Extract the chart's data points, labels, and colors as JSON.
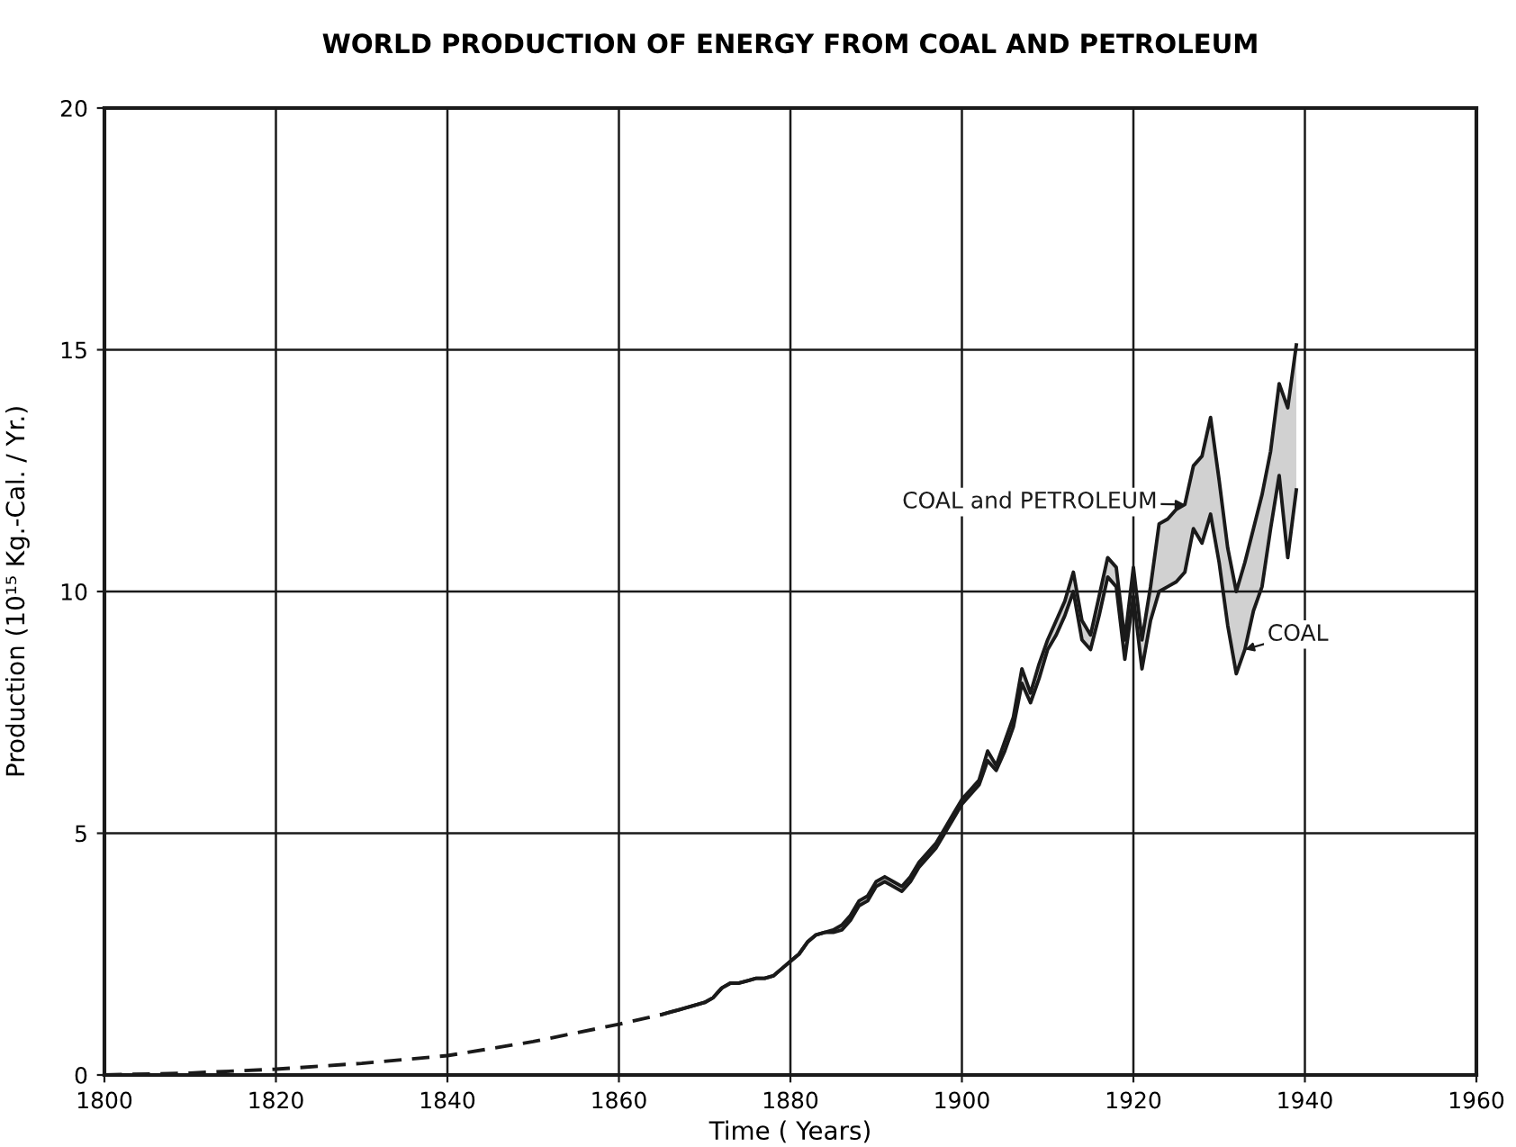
{
  "chart_data": {
    "type": "line",
    "title": "WORLD PRODUCTION OF ENERGY FROM COAL AND PETROLEUM",
    "xlabel": "Time ( Years)",
    "ylabel": "Production (10¹⁵ Kg.-Cal. / Yr.)",
    "xlim": [
      1800,
      1960
    ],
    "xticks": [
      1800,
      1820,
      1840,
      1860,
      1880,
      1900,
      1920,
      1940,
      1960
    ],
    "ylim": [
      0,
      20
    ],
    "yticks": [
      0,
      5,
      10,
      15,
      20
    ],
    "grid": true,
    "series": [
      {
        "x": [
          1800,
          1810,
          1820,
          1830,
          1840,
          1850,
          1860,
          1865
        ],
        "values": [
          0.0,
          0.04,
          0.12,
          0.24,
          0.4,
          0.69,
          1.05,
          1.25
        ],
        "color": "#1a1a1a",
        "line_style": "dashed"
      },
      {
        "name": "COAL",
        "color": "#1a1a1a",
        "x": [
          1865,
          1866,
          1867,
          1868,
          1869,
          1870,
          1871,
          1872,
          1873,
          1874,
          1875,
          1876,
          1877,
          1878,
          1879,
          1880,
          1881,
          1882,
          1883,
          1884,
          1885,
          1886,
          1887,
          1888,
          1889,
          1890,
          1891,
          1892,
          1893,
          1894,
          1895,
          1896,
          1897,
          1898,
          1899,
          1900,
          1901,
          1902,
          1903,
          1904,
          1905,
          1906,
          1907,
          1908,
          1909,
          1910,
          1911,
          1912,
          1913,
          1914,
          1915,
          1916,
          1917,
          1918,
          1919,
          1920,
          1921,
          1922,
          1923,
          1924,
          1925,
          1926,
          1927,
          1928,
          1929,
          1930,
          1931,
          1932,
          1933,
          1934,
          1935,
          1936,
          1937,
          1938,
          1939
        ],
        "values": [
          1.25,
          1.3,
          1.35,
          1.4,
          1.45,
          1.5,
          1.6,
          1.8,
          1.9,
          1.9,
          1.95,
          2.0,
          2.0,
          2.05,
          2.2,
          2.35,
          2.5,
          2.75,
          2.9,
          2.95,
          2.95,
          3.0,
          3.2,
          3.5,
          3.6,
          3.9,
          4.0,
          3.9,
          3.8,
          4.0,
          4.3,
          4.5,
          4.7,
          5.0,
          5.3,
          5.6,
          5.8,
          6.0,
          6.5,
          6.3,
          6.7,
          7.2,
          8.1,
          7.7,
          8.2,
          8.8,
          9.1,
          9.5,
          10.0,
          9.0,
          8.8,
          9.5,
          10.3,
          10.1,
          8.6,
          9.9,
          8.4,
          9.4,
          10.0,
          10.1,
          10.2,
          10.4,
          11.3,
          11.0,
          11.6,
          10.6,
          9.3,
          8.3,
          8.8,
          9.6,
          10.1,
          11.3,
          12.4,
          10.7,
          12.1
        ]
      },
      {
        "name": "COAL and PETROLEUM",
        "color": "#1a1a1a",
        "x": [
          1865,
          1866,
          1867,
          1868,
          1869,
          1870,
          1871,
          1872,
          1873,
          1874,
          1875,
          1876,
          1877,
          1878,
          1879,
          1880,
          1881,
          1882,
          1883,
          1884,
          1885,
          1886,
          1887,
          1888,
          1889,
          1890,
          1891,
          1892,
          1893,
          1894,
          1895,
          1896,
          1897,
          1898,
          1899,
          1900,
          1901,
          1902,
          1903,
          1904,
          1905,
          1906,
          1907,
          1908,
          1909,
          1910,
          1911,
          1912,
          1913,
          1914,
          1915,
          1916,
          1917,
          1918,
          1919,
          1920,
          1921,
          1922,
          1923,
          1924,
          1925,
          1926,
          1927,
          1928,
          1929,
          1930,
          1931,
          1932,
          1933,
          1934,
          1935,
          1936,
          1937,
          1938,
          1939
        ],
        "values": [
          1.25,
          1.3,
          1.35,
          1.4,
          1.45,
          1.5,
          1.6,
          1.8,
          1.9,
          1.9,
          1.95,
          2.0,
          2.0,
          2.05,
          2.2,
          2.35,
          2.5,
          2.75,
          2.9,
          2.95,
          3.0,
          3.1,
          3.3,
          3.6,
          3.7,
          4.0,
          4.1,
          4.0,
          3.9,
          4.1,
          4.4,
          4.6,
          4.8,
          5.1,
          5.4,
          5.7,
          5.9,
          6.1,
          6.7,
          6.4,
          6.9,
          7.4,
          8.4,
          7.9,
          8.5,
          9.0,
          9.4,
          9.8,
          10.4,
          9.4,
          9.1,
          9.9,
          10.7,
          10.5,
          9.0,
          10.5,
          9.0,
          10.1,
          11.4,
          11.5,
          11.7,
          11.8,
          12.6,
          12.8,
          13.6,
          12.3,
          10.9,
          10.0,
          10.6,
          11.3,
          12.0,
          12.9,
          14.3,
          13.8,
          15.1
        ],
        "lower": [
          1.25,
          1.3,
          1.35,
          1.4,
          1.45,
          1.5,
          1.6,
          1.8,
          1.9,
          1.9,
          1.95,
          2.0,
          2.0,
          2.05,
          2.2,
          2.35,
          2.5,
          2.75,
          2.9,
          2.95,
          2.95,
          3.0,
          3.2,
          3.5,
          3.6,
          3.9,
          4.0,
          3.9,
          3.8,
          4.0,
          4.3,
          4.5,
          4.7,
          5.0,
          5.3,
          5.6,
          5.8,
          6.0,
          6.5,
          6.3,
          6.7,
          7.2,
          8.1,
          7.7,
          8.2,
          8.8,
          9.1,
          9.5,
          10.0,
          9.0,
          8.8,
          9.5,
          10.3,
          10.1,
          8.6,
          9.9,
          8.4,
          9.4,
          10.0,
          10.1,
          10.2,
          10.4,
          11.3,
          11.0,
          11.6,
          10.6,
          9.3,
          8.3,
          8.8,
          9.6,
          10.1,
          11.3,
          12.4,
          10.7,
          12.1
        ],
        "upper": [
          1.25,
          1.3,
          1.35,
          1.4,
          1.45,
          1.5,
          1.6,
          1.8,
          1.9,
          1.9,
          1.95,
          2.0,
          2.0,
          2.05,
          2.2,
          2.35,
          2.5,
          2.75,
          2.9,
          2.95,
          3.0,
          3.1,
          3.3,
          3.6,
          3.7,
          4.0,
          4.1,
          4.0,
          3.9,
          4.1,
          4.4,
          4.6,
          4.8,
          5.1,
          5.4,
          5.7,
          5.9,
          6.1,
          6.7,
          6.4,
          6.9,
          7.4,
          8.4,
          7.9,
          8.5,
          9.0,
          9.4,
          9.8,
          10.4,
          9.4,
          9.1,
          9.9,
          10.7,
          10.5,
          9.0,
          10.5,
          9.0,
          10.1,
          11.4,
          11.5,
          11.7,
          11.8,
          12.6,
          12.8,
          13.6,
          12.3,
          10.9,
          10.0,
          10.6,
          11.3,
          12.0,
          12.9,
          14.3,
          13.8,
          15.1
        ]
      }
    ]
  }
}
